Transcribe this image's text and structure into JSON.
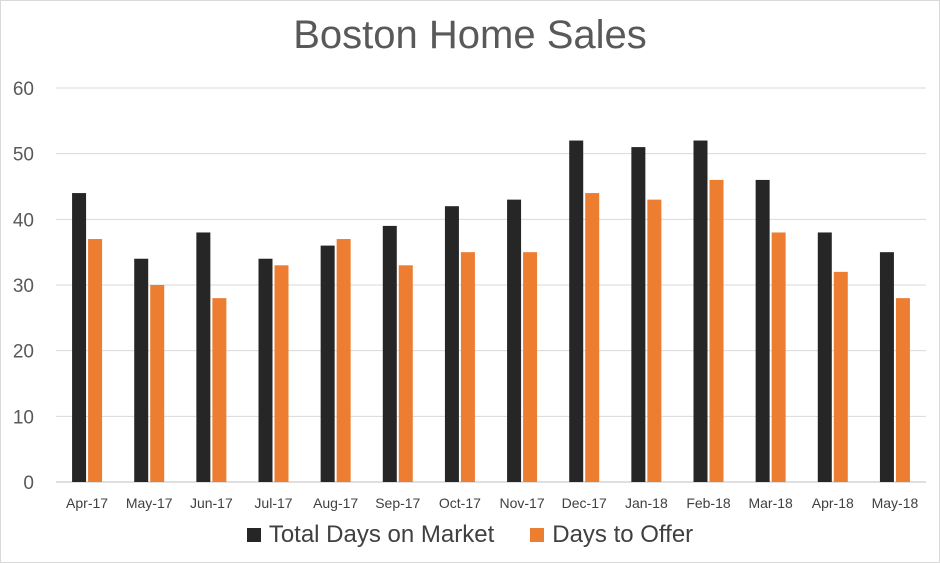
{
  "chart_data": {
    "type": "bar",
    "title": "Boston Home Sales",
    "categories": [
      "Apr-17",
      "May-17",
      "Jun-17",
      "Jul-17",
      "Aug-17",
      "Sep-17",
      "Oct-17",
      "Nov-17",
      "Dec-17",
      "Jan-18",
      "Feb-18",
      "Mar-18",
      "Apr-18",
      "May-18"
    ],
    "series": [
      {
        "name": "Total Days on Market",
        "color": "#262626",
        "values": [
          44,
          34,
          38,
          34,
          36,
          39,
          42,
          43,
          52,
          51,
          52,
          46,
          38,
          35
        ]
      },
      {
        "name": "Days to Offer",
        "color": "#ed7d31",
        "values": [
          37,
          30,
          28,
          33,
          37,
          33,
          35,
          35,
          44,
          43,
          46,
          38,
          32,
          28
        ]
      }
    ],
    "ylim": [
      0,
      60
    ],
    "yticks": [
      0,
      10,
      20,
      30,
      40,
      50,
      60
    ],
    "grid": true,
    "legend_position": "bottom"
  }
}
